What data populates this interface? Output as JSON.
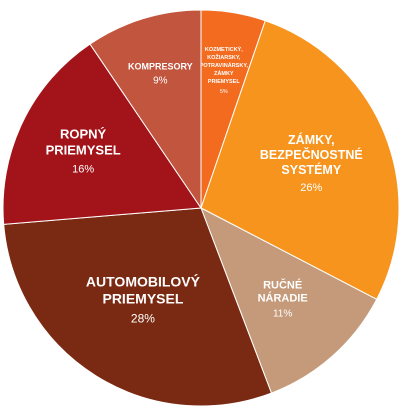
{
  "chart_data": {
    "type": "pie",
    "title": "",
    "slices": [
      {
        "label_lines": [
          "KOZMETICKÝ,",
          "KOŽIARSKY,",
          "POTRAVINÁRSKY,",
          "ZÁMKY",
          "PRIEMYSEL"
        ],
        "label": "KOZMETICKÝ, KOŽIARSKY, POTRAVINÁRSKY, ZÁMKY PRIEMYSEL",
        "value": 5,
        "value_text": "5%",
        "color": "#f26b1f"
      },
      {
        "label_lines": [
          "ZÁMKY,",
          "BEZPEČNOSTNÉ",
          "SYSTÉMY"
        ],
        "label": "ZÁMKY, BEZPEČNOSTNÉ SYSTÉMY",
        "value": 26,
        "value_text": "26%",
        "color": "#f7941d"
      },
      {
        "label_lines": [
          "RUČNÉ",
          "NÁRADIE"
        ],
        "label": "RUČNÉ NÁRADIE",
        "value": 11,
        "value_text": "11%",
        "color": "#c49a7a"
      },
      {
        "label_lines": [
          "AUTOMOBILOVÝ",
          "PRIEMYSEL"
        ],
        "label": "AUTOMOBILOVÝ PRIEMYSEL",
        "value": 28,
        "value_text": "28%",
        "color": "#7a2a12"
      },
      {
        "label_lines": [
          "ROPNÝ",
          "PRIEMYSEL"
        ],
        "label": "ROPNÝ PRIEMYSEL",
        "value": 16,
        "value_text": "16%",
        "color": "#a3141a"
      },
      {
        "label_lines": [
          "KOMPRESORY"
        ],
        "label": "KOMPRESORY",
        "value": 9,
        "value_text": "9%",
        "color": "#c2553e"
      }
    ]
  }
}
